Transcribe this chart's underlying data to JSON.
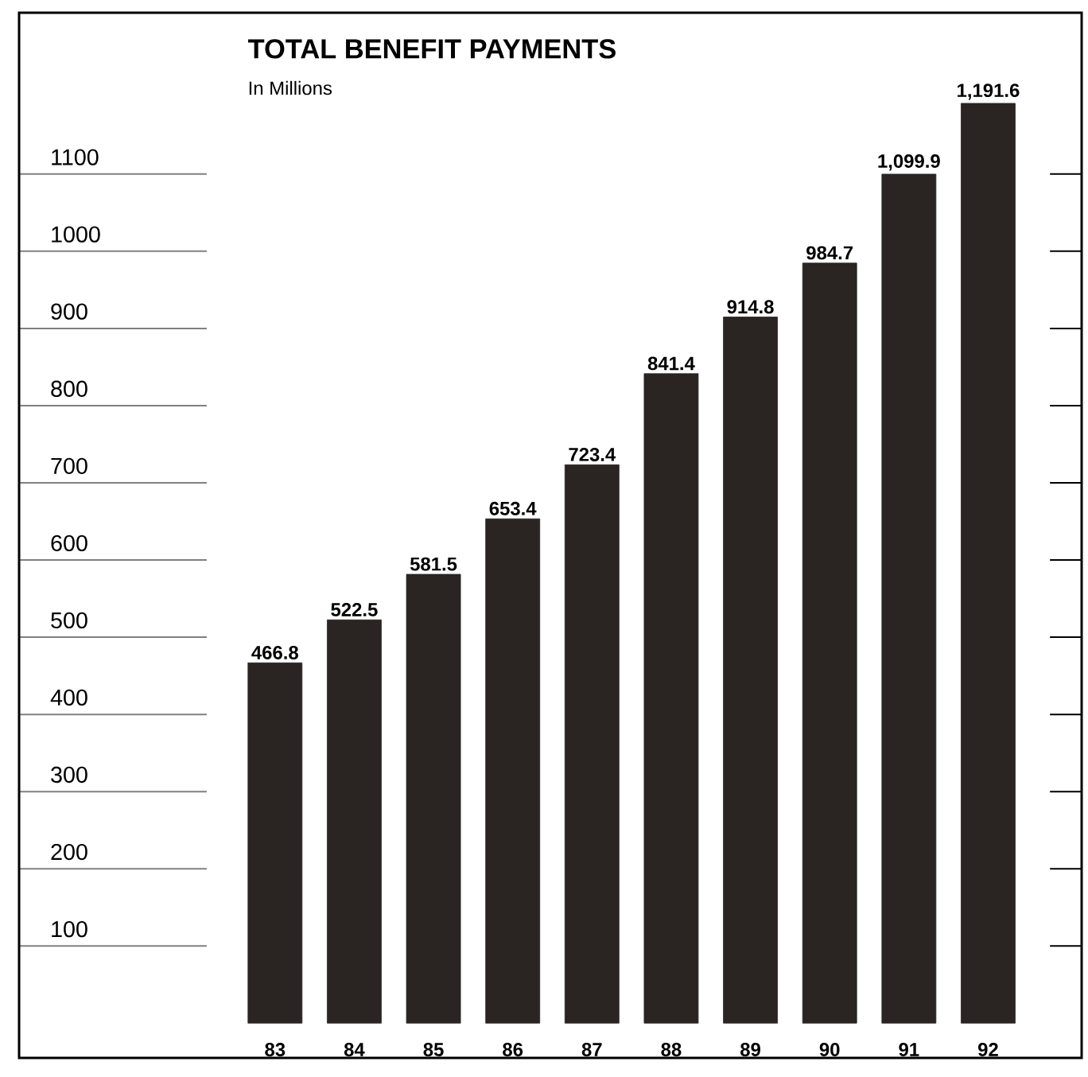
{
  "chart_data": {
    "type": "bar",
    "title": "TOTAL BENEFIT PAYMENTS",
    "subtitle": "In Millions",
    "categories": [
      "83",
      "84",
      "85",
      "86",
      "87",
      "88",
      "89",
      "90",
      "91",
      "92"
    ],
    "values": [
      466.8,
      522.5,
      581.5,
      653.4,
      723.4,
      841.4,
      914.8,
      984.7,
      1099.9,
      1191.6
    ],
    "value_labels": [
      "466.8",
      "522.5",
      "581.5",
      "653.4",
      "723.4",
      "841.4",
      "914.8",
      "984.7",
      "1,099.9",
      "1,191.6"
    ],
    "color": "#2a2522",
    "ylim": [
      -45,
      1309
    ],
    "yticks": [
      100,
      200,
      300,
      400,
      500,
      600,
      700,
      800,
      900,
      1000,
      1100
    ],
    "grid": false
  }
}
